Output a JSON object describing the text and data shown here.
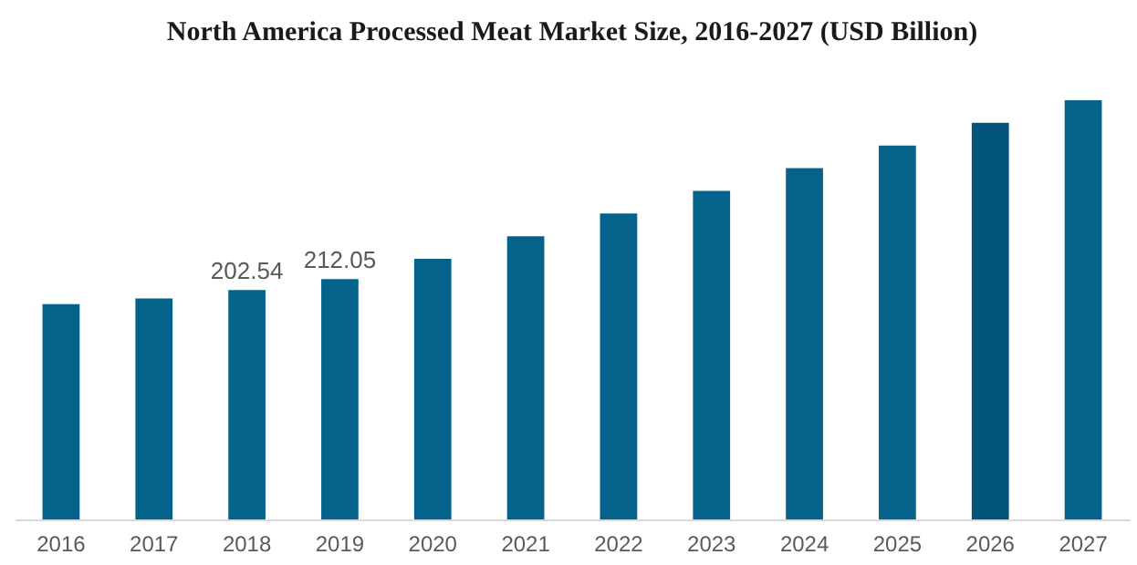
{
  "chart_data": {
    "type": "bar",
    "title": "North America Processed Meat Market Size, 2016-2027 (USD Billion)",
    "categories": [
      "2016",
      "2017",
      "2018",
      "2019",
      "2020",
      "2021",
      "2022",
      "2023",
      "2024",
      "2025",
      "2026",
      "2027"
    ],
    "values": [
      190,
      195,
      202.54,
      212.05,
      230,
      250,
      270,
      290,
      310,
      330,
      350,
      370
    ],
    "value_labels": [
      null,
      null,
      "202.54",
      "212.05",
      null,
      null,
      null,
      null,
      null,
      null,
      null,
      null
    ],
    "colors": [
      "#05628a",
      "#05628a",
      "#05628a",
      "#05628a",
      "#05628a",
      "#05628a",
      "#05628a",
      "#05628a",
      "#05628a",
      "#05628a",
      "#03547a",
      "#05628a"
    ],
    "tick_labels": "x",
    "grid": false
  }
}
